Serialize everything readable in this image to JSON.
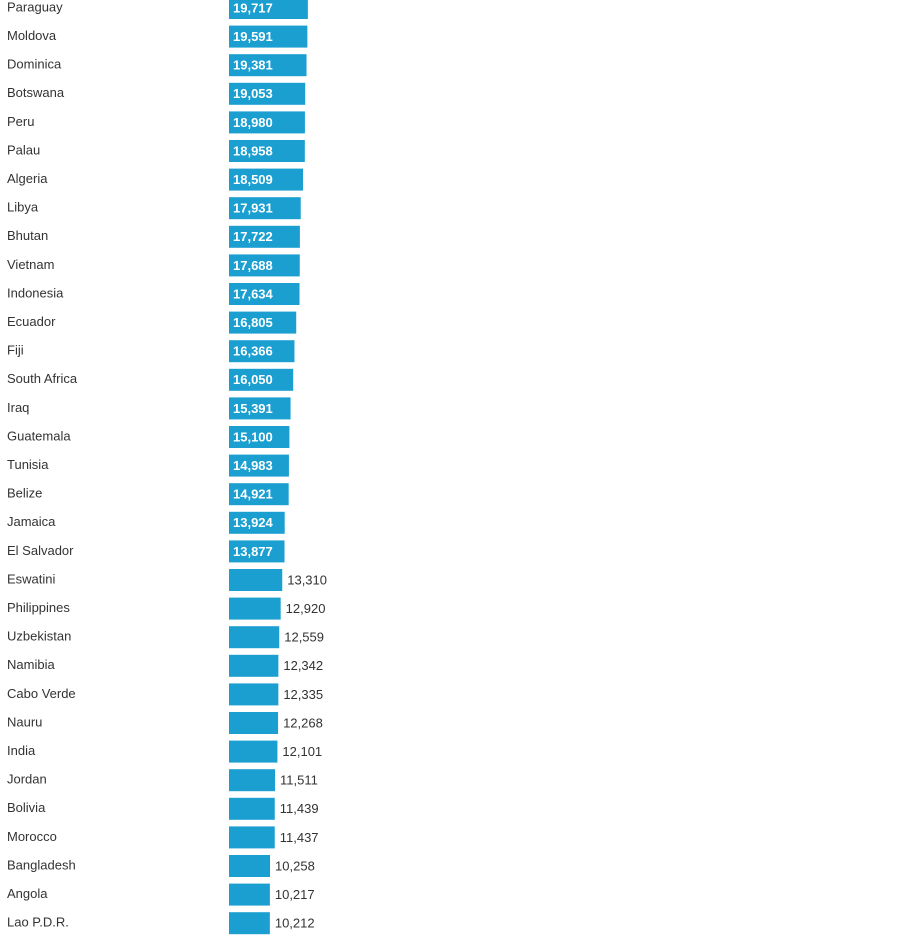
{
  "chart_data": {
    "type": "bar",
    "orientation": "horizontal",
    "color": "#1b9fd1",
    "categories": [
      "Paraguay",
      "Moldova",
      "Dominica",
      "Botswana",
      "Peru",
      "Palau",
      "Algeria",
      "Libya",
      "Bhutan",
      "Vietnam",
      "Indonesia",
      "Ecuador",
      "Fiji",
      "South Africa",
      "Iraq",
      "Guatemala",
      "Tunisia",
      "Belize",
      "Jamaica",
      "El Salvador",
      "Eswatini",
      "Philippines",
      "Uzbekistan",
      "Namibia",
      "Cabo Verde",
      "Nauru",
      "India",
      "Jordan",
      "Bolivia",
      "Morocco",
      "Bangladesh",
      "Angola",
      "Lao P.D.R."
    ],
    "values": [
      19717,
      19591,
      19381,
      19053,
      18980,
      18958,
      18509,
      17931,
      17722,
      17688,
      17634,
      16805,
      16366,
      16050,
      15391,
      15100,
      14983,
      14921,
      13924,
      13877,
      13310,
      12920,
      12559,
      12342,
      12335,
      12268,
      12101,
      11511,
      11439,
      11437,
      10258,
      10217,
      10212
    ],
    "value_labels": [
      "19,717",
      "19,591",
      "19,381",
      "19,053",
      "18,980",
      "18,958",
      "18,509",
      "17,931",
      "17,722",
      "17,688",
      "17,634",
      "16,805",
      "16,366",
      "16,050",
      "15,391",
      "15,100",
      "14,983",
      "14,921",
      "13,924",
      "13,877",
      "13,310",
      "12,920",
      "12,559",
      "12,342",
      "12,335",
      "12,268",
      "12,101",
      "11,511",
      "11,439",
      "11,437",
      "10,258",
      "10,217",
      "10,212"
    ]
  }
}
